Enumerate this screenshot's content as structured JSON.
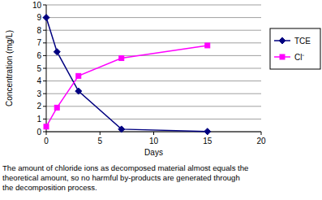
{
  "chart_data": {
    "type": "line",
    "x": [
      0,
      1,
      3,
      7,
      15
    ],
    "series": [
      {
        "name": "TCE",
        "color": "#000080",
        "marker": "diamond",
        "values": [
          9.0,
          6.3,
          3.2,
          0.2,
          0.02
        ]
      },
      {
        "name": "Cl⁻",
        "color": "#FF00FF",
        "marker": "square",
        "values": [
          0.4,
          1.9,
          4.4,
          5.8,
          6.8
        ]
      }
    ],
    "x_label": "Days",
    "y_label": "Concentration (mg/L)",
    "xlim": [
      0,
      20
    ],
    "xticks": [
      0,
      5,
      10,
      15,
      20
    ],
    "ylim": [
      0,
      10
    ],
    "yticks": [
      0,
      1,
      2,
      3,
      4,
      5,
      6,
      7,
      8,
      9,
      10
    ],
    "grid": true,
    "legend": "right",
    "annotation": [
      "The amount of chloride ions as decomposed material almost equals the",
      "theoretical amount, so no harmful by-products are generated through",
      "the decomposition process."
    ]
  }
}
